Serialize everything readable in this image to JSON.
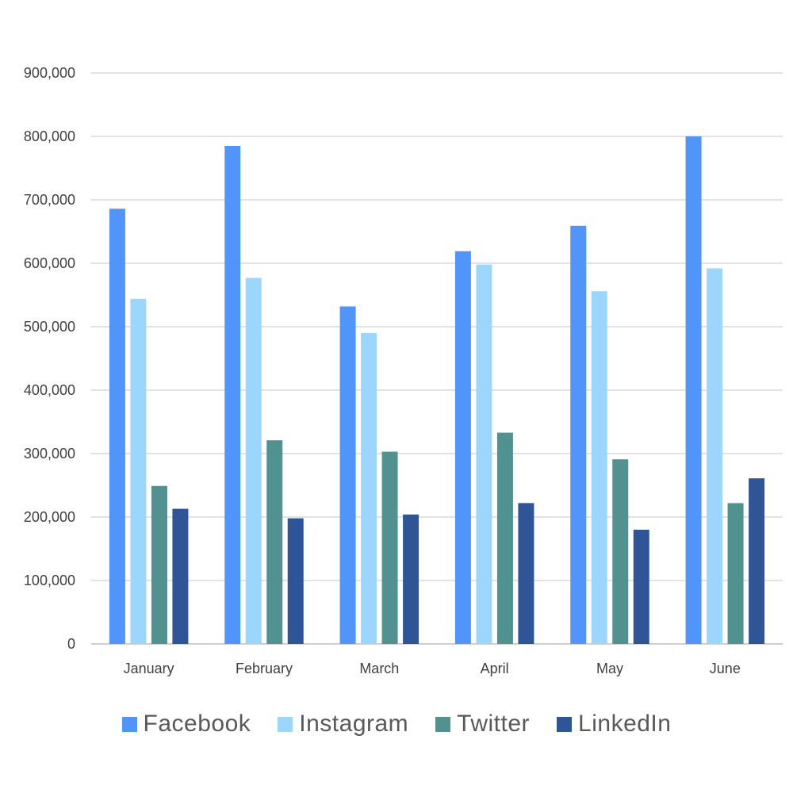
{
  "chart_data": {
    "type": "bar",
    "title": "",
    "xlabel": "",
    "ylabel": "",
    "categories": [
      "January",
      "February",
      "March",
      "April",
      "May",
      "June"
    ],
    "series": [
      {
        "name": "Facebook",
        "color": "#5295fa",
        "values": [
          686000,
          785000,
          532000,
          619000,
          659000,
          800000
        ]
      },
      {
        "name": "Instagram",
        "color": "#9dd6fc",
        "values": [
          544000,
          577000,
          490000,
          598000,
          556000,
          592000
        ]
      },
      {
        "name": "Twitter",
        "color": "#51918f",
        "values": [
          249000,
          321000,
          303000,
          333000,
          291000,
          222000
        ]
      },
      {
        "name": "LinkedIn",
        "color": "#2f5597",
        "values": [
          213000,
          198000,
          204000,
          222000,
          180000,
          261000
        ]
      }
    ],
    "ylim": [
      0,
      900000
    ],
    "yticks": [
      0,
      100000,
      200000,
      300000,
      400000,
      500000,
      600000,
      700000,
      800000,
      900000
    ],
    "ytick_labels": [
      "0",
      "100,000",
      "200,000",
      "300,000",
      "400,000",
      "500,000",
      "600,000",
      "700,000",
      "800,000",
      "900,000"
    ],
    "grid": true,
    "legend_position": "bottom"
  }
}
